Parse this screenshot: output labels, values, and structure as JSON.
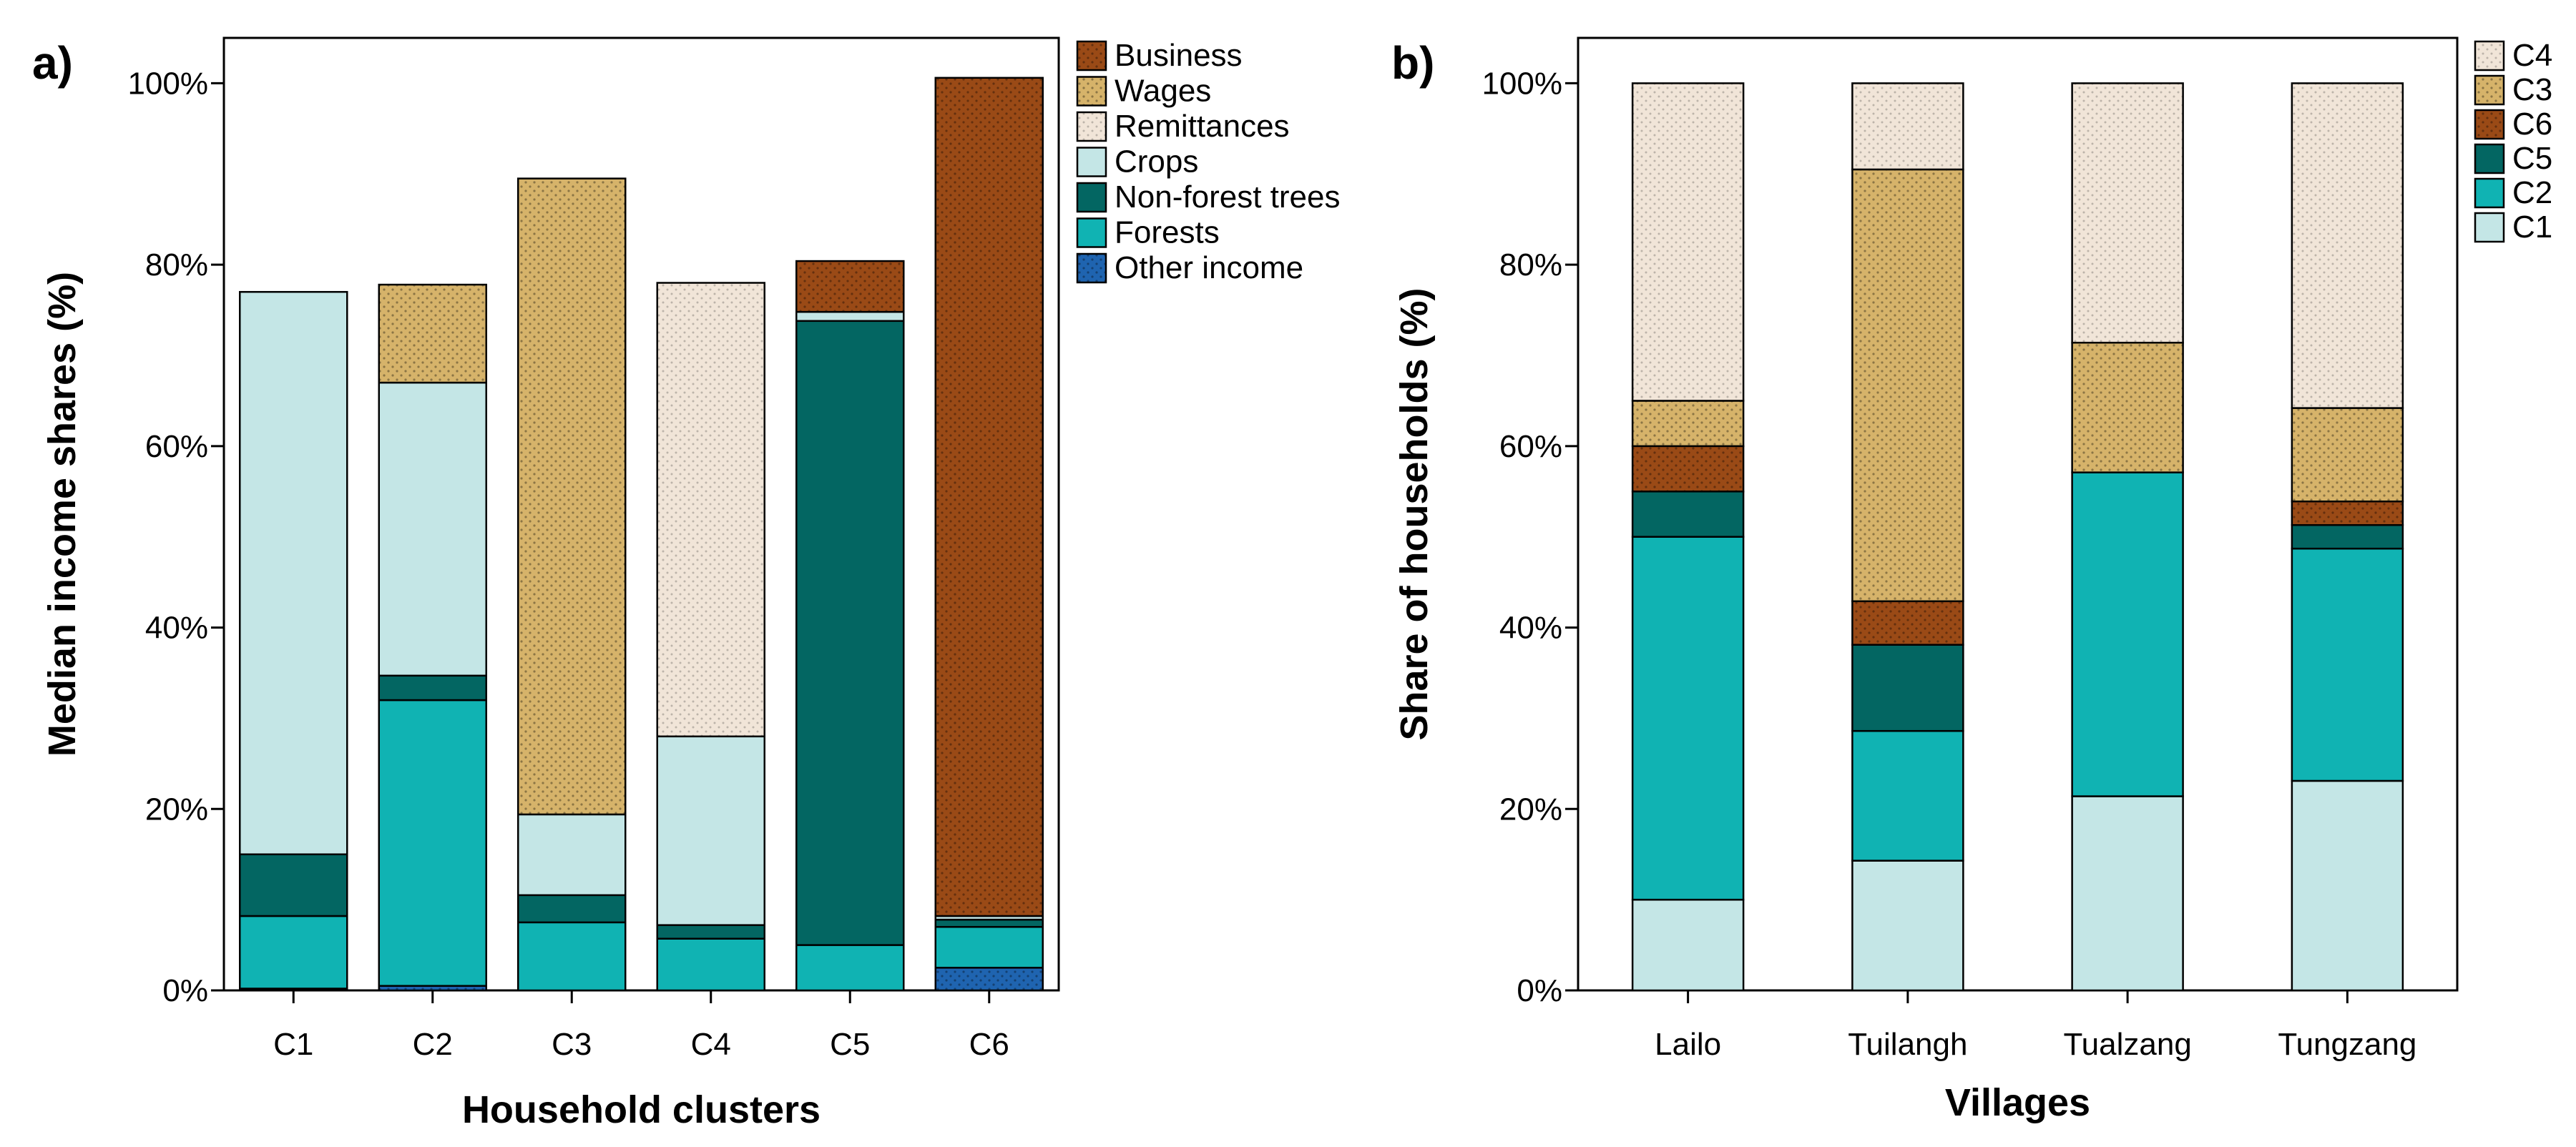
{
  "colors": {
    "Business": "#9a4a16",
    "Wages": "#d6b36a",
    "Remittances": "#f1e5d8",
    "Crops": "#c4e6e6",
    "Non-forest trees": "#036662",
    "Forests": "#10b3b3",
    "Other income": "#1f64b0",
    "C1": "#c4e6e6",
    "C2": "#10b3b3",
    "C5": "#036662",
    "C6": "#9a4a16",
    "C3": "#d6b36a",
    "C4": "#f1e5d8"
  },
  "chart_data": [
    {
      "panel": "a)",
      "type": "bar",
      "stacked": true,
      "xlabel": "Household clusters",
      "ylabel": "Median income shares (%)",
      "ylim": [
        0,
        105
      ],
      "yticks": [
        0,
        20,
        40,
        60,
        80,
        100
      ],
      "yticklabels": [
        "0%",
        "20%",
        "40%",
        "60%",
        "80%",
        "100%"
      ],
      "categories": [
        "C1",
        "C2",
        "C3",
        "C4",
        "C5",
        "C6"
      ],
      "legend_position": "outside-right",
      "legend": [
        "Business",
        "Wages",
        "Remittances",
        "Crops",
        "Non-forest trees",
        "Forests",
        "Other income"
      ],
      "series": [
        {
          "name": "Other income",
          "values": [
            0.2,
            0.5,
            0,
            0,
            0,
            2.5
          ]
        },
        {
          "name": "Forests",
          "values": [
            8.0,
            31.5,
            7.5,
            5.7,
            5.0,
            4.5
          ]
        },
        {
          "name": "Non-forest trees",
          "values": [
            6.8,
            2.7,
            3.0,
            1.5,
            68.8,
            0.8
          ]
        },
        {
          "name": "Crops",
          "values": [
            62.0,
            32.3,
            8.9,
            20.8,
            1.0,
            0.4
          ]
        },
        {
          "name": "Remittances",
          "values": [
            0,
            0,
            0,
            50.0,
            0,
            0
          ]
        },
        {
          "name": "Wages",
          "values": [
            0,
            10.8,
            70.1,
            0,
            0,
            0
          ]
        },
        {
          "name": "Business",
          "values": [
            0,
            0,
            0,
            0,
            5.6,
            92.4
          ]
        }
      ]
    },
    {
      "panel": "b)",
      "type": "bar",
      "stacked": true,
      "xlabel": "Villages",
      "ylabel": "Share of households (%)",
      "ylim": [
        0,
        105
      ],
      "yticks": [
        0,
        20,
        40,
        60,
        80,
        100
      ],
      "yticklabels": [
        "0%",
        "20%",
        "40%",
        "60%",
        "80%",
        "100%"
      ],
      "categories": [
        "Lailo",
        "Tuilangh",
        "Tualzang",
        "Tungzang"
      ],
      "legend_position": "outside-right",
      "legend": [
        "C4",
        "C3",
        "C6",
        "C5",
        "C2",
        "C1"
      ],
      "series": [
        {
          "name": "C1",
          "values": [
            10.0,
            14.3,
            21.4,
            23.1
          ]
        },
        {
          "name": "C2",
          "values": [
            40.0,
            14.3,
            35.7,
            25.6
          ]
        },
        {
          "name": "C5",
          "values": [
            5.0,
            9.5,
            0,
            2.6
          ]
        },
        {
          "name": "C6",
          "values": [
            5.0,
            4.8,
            0,
            2.6
          ]
        },
        {
          "name": "C3",
          "values": [
            5.0,
            47.6,
            14.3,
            10.3
          ]
        },
        {
          "name": "C4",
          "values": [
            35.0,
            9.5,
            28.6,
            35.8
          ]
        }
      ]
    }
  ]
}
